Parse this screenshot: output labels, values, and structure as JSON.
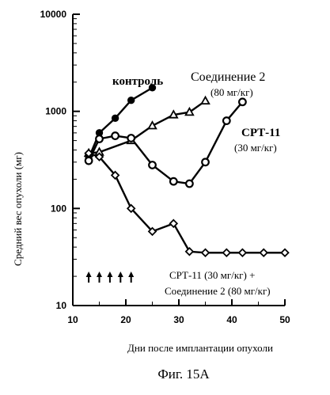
{
  "chart_data": {
    "type": "line",
    "title": "",
    "xlabel": "Дни после имплантации опухоли",
    "ylabel": "Средний вес опухоли (мг)",
    "xlim": [
      10,
      50
    ],
    "ylim": [
      10,
      10000
    ],
    "yscale": "log",
    "x_ticks": [
      10,
      20,
      30,
      40,
      50
    ],
    "y_ticks": [
      10,
      100,
      1000,
      10000
    ],
    "grid": false,
    "series": [
      {
        "name": "контроль",
        "marker": "filled-circle",
        "x": [
          13,
          15,
          18,
          21,
          25
        ],
        "y": [
          330,
          600,
          850,
          1300,
          1750
        ]
      },
      {
        "name": "Соединение 2",
        "sublabel": "(80 мг/кг)",
        "marker": "open-triangle",
        "x": [
          13,
          15,
          21,
          25,
          29,
          32,
          35
        ],
        "y": [
          370,
          380,
          500,
          710,
          920,
          980,
          1280
        ]
      },
      {
        "name": "СРТ-11",
        "sublabel": "(30 мг/кг)",
        "marker": "open-circle",
        "x": [
          13,
          15,
          18,
          21,
          25,
          29,
          32,
          35,
          39,
          42
        ],
        "y": [
          310,
          520,
          560,
          530,
          280,
          190,
          180,
          300,
          800,
          1250
        ]
      },
      {
        "name": "СРТ-11 (30 мг/кг) +",
        "sublabel": "Соединение 2 (80 мг/кг)",
        "marker": "open-diamond",
        "x": [
          13,
          15,
          18,
          21,
          25,
          29,
          32,
          35,
          39,
          42,
          46,
          50
        ],
        "y": [
          370,
          340,
          220,
          100,
          58,
          70,
          36,
          35,
          35,
          35,
          35,
          35
        ]
      }
    ],
    "dosing_arrows_x": [
      13,
      15,
      17,
      19,
      21
    ]
  },
  "caption": "Фиг. 15А"
}
